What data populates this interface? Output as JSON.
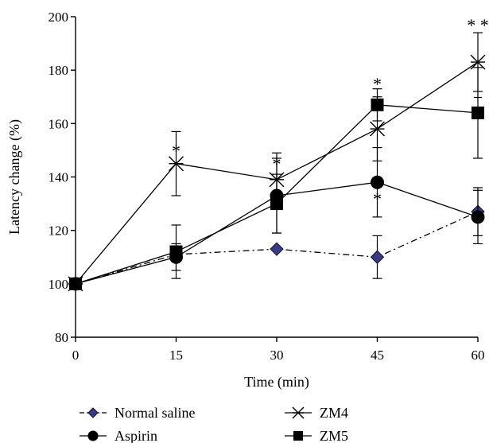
{
  "chart_data": {
    "type": "line",
    "xlabel": "Time (min)",
    "ylabel": "Latency change (%)",
    "x": [
      0,
      15,
      30,
      45,
      60
    ],
    "xticks": [
      "0",
      "15",
      "30",
      "45",
      "60"
    ],
    "yticks": [
      "80",
      "100",
      "120",
      "140",
      "160",
      "180",
      "200"
    ],
    "xlim": [
      0,
      60
    ],
    "ylim": [
      80,
      200
    ],
    "grid": false,
    "legend_position": "bottom",
    "series": [
      {
        "name": "Normal saline",
        "values": [
          100,
          111,
          113,
          110,
          127
        ],
        "errors": [
          0,
          0,
          0,
          8,
          9
        ],
        "marker": "diamond",
        "line_style": "dash-dot",
        "color": "#1c1c4a"
      },
      {
        "name": "Aspirin",
        "values": [
          100,
          110,
          133,
          138,
          125
        ],
        "errors": [
          0,
          5,
          14,
          13,
          10
        ],
        "marker": "circle",
        "line_style": "solid",
        "color": "#000000"
      },
      {
        "name": "ZM4",
        "values": [
          100,
          145,
          139,
          158,
          183
        ],
        "errors": [
          0,
          12,
          10,
          12,
          11
        ],
        "marker": "star",
        "line_style": "solid",
        "color": "#000000"
      },
      {
        "name": "ZM5",
        "values": [
          100,
          112,
          130,
          167,
          164
        ],
        "errors": [
          0,
          10,
          11,
          6,
          17
        ],
        "marker": "square",
        "line_style": "solid",
        "color": "#000000"
      }
    ],
    "annotations": [
      {
        "text": "*",
        "x": 15,
        "y": 150
      },
      {
        "text": "*",
        "x": 30,
        "y": 145
      },
      {
        "text": "*",
        "x": 45,
        "y": 175
      },
      {
        "text": "*",
        "x": 45,
        "y": 132
      },
      {
        "text": "* *",
        "x": 60,
        "y": 197
      },
      {
        "text": "+",
        "x": 60,
        "y": 170
      }
    ]
  }
}
